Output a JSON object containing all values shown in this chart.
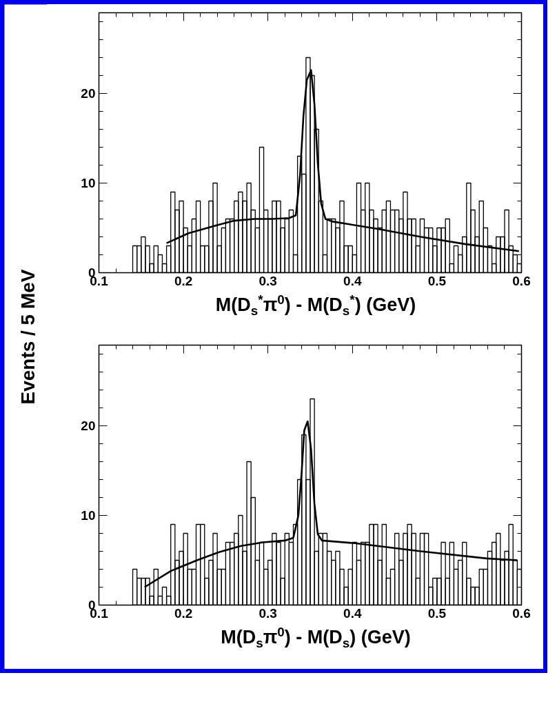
{
  "chart_data": [
    {
      "type": "histogram",
      "xlabel": "M(D$_{s}$$^{*}$π$^{0}$) - M(D$_{s}$$^{*}$) (GeV)",
      "ylabel": "Events / 5 MeV",
      "xlim": [
        0.1,
        0.6
      ],
      "ylim": [
        0,
        29
      ],
      "xticks": [
        0.1,
        0.2,
        0.3,
        0.4,
        0.5,
        0.6
      ],
      "yticks": [
        0,
        10,
        20
      ],
      "series": [
        {
          "color": "#000000",
          "bins": [
            0.14,
            0.145,
            0.15,
            0.155,
            0.16,
            0.165,
            0.17,
            0.175,
            0.18,
            0.185,
            0.19,
            0.195,
            0.2,
            0.205,
            0.21,
            0.215,
            0.22,
            0.225,
            0.23,
            0.235,
            0.24,
            0.245,
            0.25,
            0.255,
            0.26,
            0.265,
            0.27,
            0.275,
            0.28,
            0.285,
            0.29,
            0.295,
            0.3,
            0.305,
            0.31,
            0.315,
            0.32,
            0.325,
            0.33,
            0.335,
            0.34,
            0.345,
            0.35,
            0.355,
            0.36,
            0.365,
            0.37,
            0.375,
            0.38,
            0.385,
            0.39,
            0.395,
            0.4,
            0.405,
            0.41,
            0.415,
            0.42,
            0.425,
            0.43,
            0.435,
            0.44,
            0.445,
            0.45,
            0.455,
            0.46,
            0.465,
            0.47,
            0.475,
            0.48,
            0.485,
            0.49,
            0.495,
            0.5,
            0.505,
            0.51,
            0.515,
            0.52,
            0.525,
            0.53,
            0.535,
            0.54,
            0.545,
            0.55,
            0.555,
            0.56,
            0.565,
            0.57,
            0.575,
            0.58,
            0.585,
            0.59,
            0.595,
            0.6
          ],
          "values": [
            3,
            3,
            4,
            3,
            1,
            3,
            2,
            1,
            3,
            9,
            7,
            8,
            5,
            3,
            6,
            8,
            3,
            3,
            8,
            10,
            3,
            5,
            6,
            6,
            8,
            9,
            8,
            10,
            7,
            5,
            14,
            7,
            6,
            8,
            8,
            5,
            6,
            7,
            2,
            13,
            11,
            24,
            22,
            16,
            8,
            2,
            6,
            6,
            5,
            8,
            3,
            3,
            2,
            10,
            7,
            10,
            7,
            6,
            5,
            7,
            8,
            7,
            7,
            6,
            9,
            6,
            6,
            3,
            6,
            5,
            5,
            3,
            5,
            5,
            6,
            1,
            3,
            2,
            4,
            10,
            7,
            4,
            8,
            5,
            3,
            1,
            4,
            4,
            7,
            3,
            2,
            1
          ]
        },
        {
          "type": "line",
          "color": "#000000",
          "x": [
            0.18,
            0.206,
            0.24,
            0.26,
            0.284,
            0.305,
            0.325,
            0.333,
            0.338,
            0.342,
            0.346,
            0.351,
            0.355,
            0.359,
            0.363,
            0.368,
            0.377,
            0.429,
            0.481,
            0.533,
            0.597
          ],
          "values": [
            3.3,
            4.4,
            5.3,
            5.8,
            6.0,
            6.0,
            6.1,
            6.4,
            10.9,
            17.5,
            21.5,
            22.6,
            18.8,
            12.2,
            7.7,
            6.0,
            5.7,
            4.9,
            4.0,
            3.2,
            2.4
          ]
        }
      ]
    },
    {
      "type": "histogram",
      "xlabel": "M(D$_{s}$π$^{0}$) - M(D$_{s}$) (GeV)",
      "xlim": [
        0.1,
        0.6
      ],
      "ylim": [
        0,
        29
      ],
      "xticks": [
        0.1,
        0.2,
        0.3,
        0.4,
        0.5,
        0.6
      ],
      "yticks": [
        0,
        10,
        20
      ],
      "series": [
        {
          "color": "#000000",
          "bins": [
            0.14,
            0.145,
            0.15,
            0.155,
            0.16,
            0.165,
            0.17,
            0.175,
            0.18,
            0.185,
            0.19,
            0.195,
            0.2,
            0.205,
            0.21,
            0.215,
            0.22,
            0.225,
            0.23,
            0.235,
            0.24,
            0.245,
            0.25,
            0.255,
            0.26,
            0.265,
            0.27,
            0.275,
            0.28,
            0.285,
            0.29,
            0.295,
            0.3,
            0.305,
            0.31,
            0.315,
            0.32,
            0.325,
            0.33,
            0.335,
            0.34,
            0.345,
            0.35,
            0.355,
            0.36,
            0.365,
            0.37,
            0.375,
            0.38,
            0.385,
            0.39,
            0.395,
            0.4,
            0.405,
            0.41,
            0.415,
            0.42,
            0.425,
            0.43,
            0.435,
            0.44,
            0.445,
            0.45,
            0.455,
            0.46,
            0.465,
            0.47,
            0.475,
            0.48,
            0.485,
            0.49,
            0.495,
            0.5,
            0.505,
            0.51,
            0.515,
            0.52,
            0.525,
            0.53,
            0.535,
            0.54,
            0.545,
            0.55,
            0.555,
            0.56,
            0.565,
            0.57,
            0.575,
            0.58,
            0.585,
            0.59,
            0.595,
            0.6
          ],
          "values": [
            4,
            3,
            3,
            3,
            1,
            4,
            1,
            2,
            1,
            9,
            5,
            6,
            8,
            4,
            4,
            9,
            9,
            3,
            5,
            8,
            4,
            4,
            7,
            7,
            8,
            10,
            6,
            16,
            12,
            5,
            7,
            4,
            5,
            8,
            7,
            3,
            8,
            7,
            9,
            14,
            19,
            14,
            23,
            6,
            8,
            8,
            6,
            5,
            6,
            4,
            2,
            4,
            7,
            5,
            7,
            7,
            9,
            9,
            5,
            9,
            3,
            4,
            8,
            5,
            8,
            9,
            8,
            3,
            8,
            8,
            2,
            3,
            3,
            7,
            3,
            7,
            4,
            5,
            7,
            3,
            2,
            2,
            4,
            4,
            6,
            7,
            8,
            5,
            6,
            9,
            5,
            4
          ]
        },
        {
          "type": "line",
          "color": "#000000",
          "x": [
            0.154,
            0.185,
            0.216,
            0.242,
            0.268,
            0.294,
            0.32,
            0.33,
            0.336,
            0.34,
            0.343,
            0.347,
            0.351,
            0.355,
            0.359,
            0.364,
            0.403,
            0.481,
            0.559,
            0.595
          ],
          "values": [
            2.0,
            3.8,
            5.0,
            5.9,
            6.6,
            7.0,
            7.2,
            7.5,
            10.0,
            15.0,
            19.5,
            20.5,
            17.4,
            11.3,
            7.9,
            7.2,
            6.9,
            6.0,
            5.2,
            5.0
          ]
        }
      ]
    }
  ]
}
